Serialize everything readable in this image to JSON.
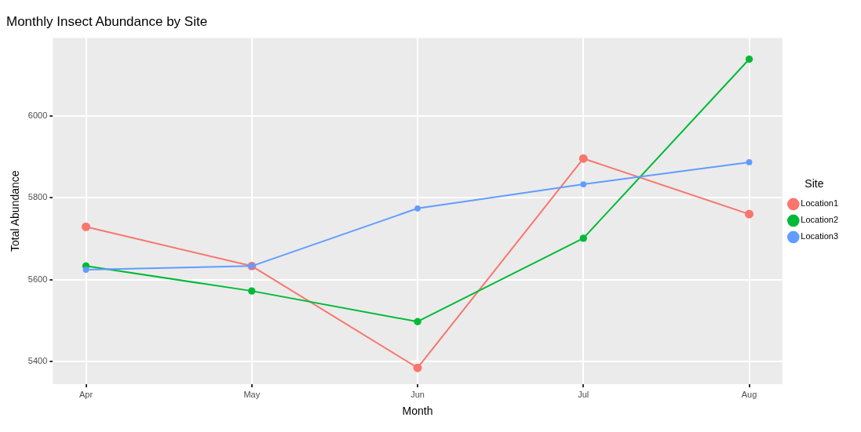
{
  "chart_data": {
    "type": "line",
    "title": "Monthly Insect Abundance by Site",
    "xlabel": "Month",
    "ylabel": "Total Abundance",
    "legend_title": "Site",
    "categories": [
      "Apr",
      "May",
      "Jun",
      "Jul",
      "Aug"
    ],
    "series": [
      {
        "name": "Location1",
        "color": "#f8766d",
        "values": [
          5729,
          5633,
          5384,
          5896,
          5760
        ]
      },
      {
        "name": "Location2",
        "color": "#00ba38",
        "values": [
          5633,
          5572,
          5497,
          5701,
          6139
        ]
      },
      {
        "name": "Location3",
        "color": "#619cff",
        "values": [
          5624,
          5633,
          5774,
          5833,
          5887
        ]
      }
    ],
    "ylim": [
      5344,
      6191
    ],
    "yticks": [
      5400,
      5600,
      5800,
      6000
    ],
    "grid": true,
    "legend": "right",
    "marker": "circle",
    "line_style": "solid"
  }
}
